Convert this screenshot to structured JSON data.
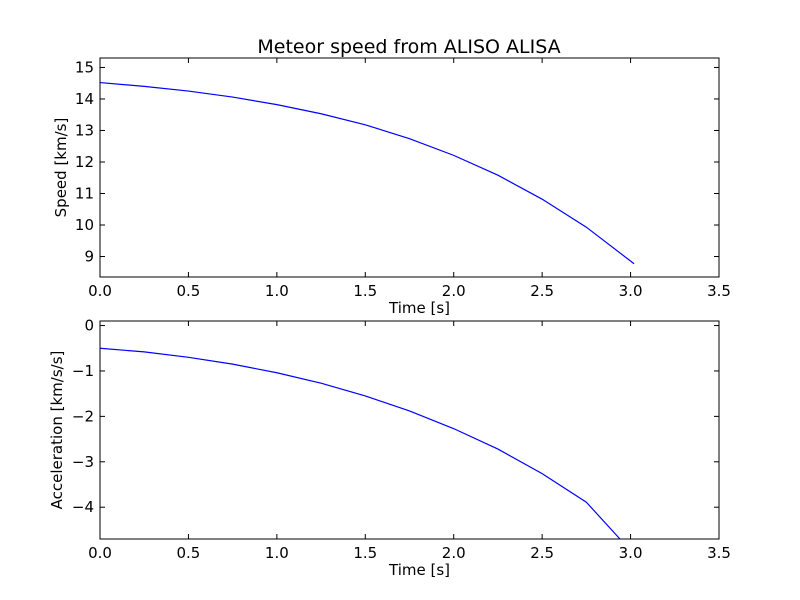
{
  "figure": {
    "title": "Meteor speed from  ALISO ALISA",
    "line_color": "#0000ff",
    "axes_color": "#000000",
    "background": "#ffffff"
  },
  "chart_data": [
    {
      "type": "line",
      "title": "Meteor speed from  ALISO ALISA",
      "xlabel": "Time [s]",
      "ylabel": "Speed [km/s]",
      "xlim": [
        0.0,
        3.5
      ],
      "ylim": [
        8.35,
        15.3
      ],
      "xticks": [
        0.0,
        0.5,
        1.0,
        1.5,
        2.0,
        2.5,
        3.0,
        3.5
      ],
      "xtick_labels": [
        "0.0",
        "0.5",
        "1.0",
        "1.5",
        "2.0",
        "2.5",
        "3.0",
        "3.5"
      ],
      "yticks": [
        9,
        10,
        11,
        12,
        13,
        14,
        15
      ],
      "ytick_labels": [
        "9",
        "10",
        "11",
        "12",
        "13",
        "14",
        "15"
      ],
      "grid": false,
      "series": [
        {
          "color": "#0000ff",
          "x": [
            0.0,
            0.25,
            0.5,
            0.75,
            1.0,
            1.25,
            1.5,
            1.75,
            2.0,
            2.25,
            2.5,
            2.75,
            3.02
          ],
          "y": [
            14.52,
            14.4,
            14.25,
            14.06,
            13.82,
            13.53,
            13.18,
            12.74,
            12.21,
            11.58,
            10.82,
            9.93,
            8.77
          ]
        }
      ]
    },
    {
      "type": "line",
      "xlabel": "Time [s]",
      "ylabel": "Acceleration [km/s/s]",
      "xlim": [
        0.0,
        3.5
      ],
      "ylim": [
        -4.7,
        0.1
      ],
      "xticks": [
        0.0,
        0.5,
        1.0,
        1.5,
        2.0,
        2.5,
        3.0,
        3.5
      ],
      "xtick_labels": [
        "0.0",
        "0.5",
        "1.0",
        "1.5",
        "2.0",
        "2.5",
        "3.0",
        "3.5"
      ],
      "yticks": [
        0,
        -1,
        -2,
        -3,
        -4
      ],
      "ytick_labels": [
        "0",
        "−1",
        "−2",
        "−3",
        "−4"
      ],
      "grid": false,
      "series": [
        {
          "color": "#0000ff",
          "x": [
            0.0,
            0.25,
            0.5,
            0.75,
            1.0,
            1.25,
            1.5,
            1.75,
            2.0,
            2.25,
            2.5,
            2.75,
            2.94
          ],
          "y": [
            -0.5,
            -0.58,
            -0.7,
            -0.85,
            -1.04,
            -1.27,
            -1.55,
            -1.88,
            -2.27,
            -2.72,
            -3.26,
            -3.89,
            -4.7
          ]
        }
      ]
    }
  ]
}
